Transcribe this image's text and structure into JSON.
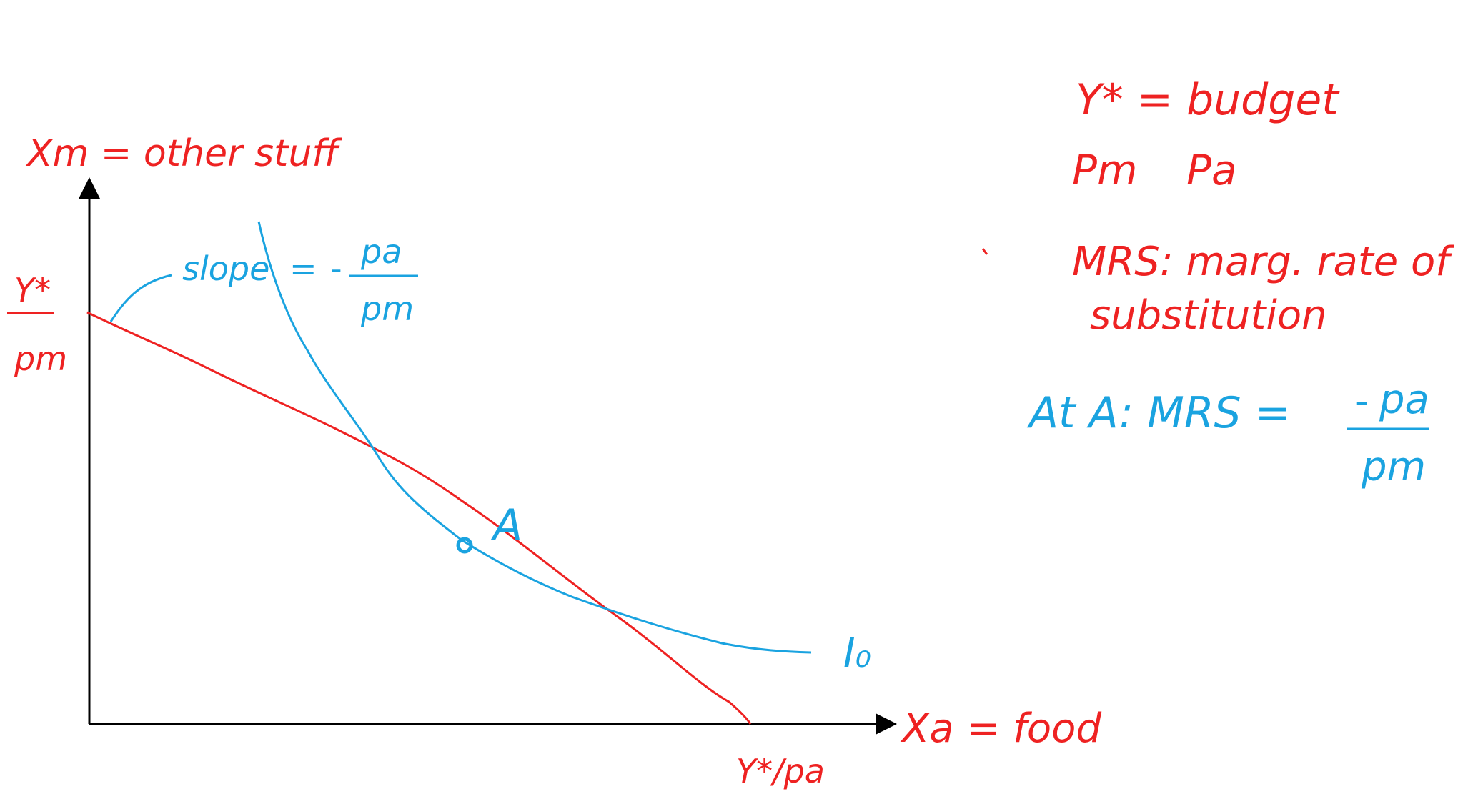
{
  "colors": {
    "budget": "#ee2222",
    "indifference": "#1aa3e0",
    "axis": "#000000"
  },
  "axes": {
    "y_label": "Xm = other stuff",
    "x_label": "Xa = food",
    "y_intercept_numerator": "Y*",
    "y_intercept_denominator": "pm",
    "x_intercept": "Y*/pa"
  },
  "point_label": "A",
  "curve_label": "I₀",
  "slope_note": {
    "prefix": "slope",
    "equals": "=",
    "minus": "-",
    "numerator": "pa",
    "denominator": "pm"
  },
  "notes": {
    "line1": "Y* = budget",
    "line2_a": "Pm",
    "line2_b": "Pa",
    "line3": "MRS: marg. rate of",
    "line4": "substitution",
    "line5_prefix": "At A: MRS =",
    "line5_minus": "-",
    "line5_numerator": "pa",
    "line5_denominator": "pm"
  }
}
